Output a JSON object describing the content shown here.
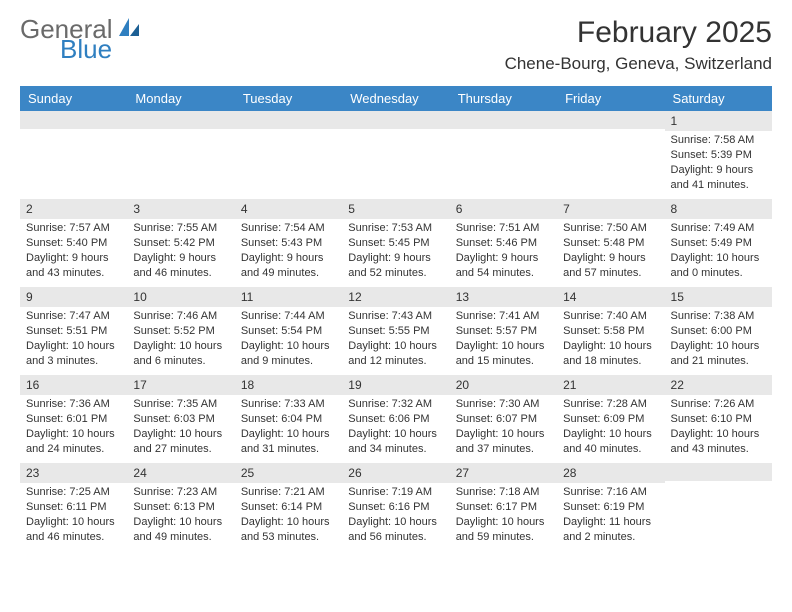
{
  "logo": {
    "line1": "General",
    "line2": "Blue"
  },
  "title": "February 2025",
  "location": "Chene-Bourg, Geneva, Switzerland",
  "colors": {
    "header_bg": "#3b86c6",
    "header_text": "#ffffff",
    "daynum_bg": "#e8e8e8",
    "text": "#333333",
    "logo_gray": "#6a6a6a",
    "logo_blue": "#2f7fc0",
    "page_bg": "#ffffff"
  },
  "dayNames": [
    "Sunday",
    "Monday",
    "Tuesday",
    "Wednesday",
    "Thursday",
    "Friday",
    "Saturday"
  ],
  "weeks": [
    [
      {
        "num": "",
        "sunrise": "",
        "sunset": "",
        "daylight": ""
      },
      {
        "num": "",
        "sunrise": "",
        "sunset": "",
        "daylight": ""
      },
      {
        "num": "",
        "sunrise": "",
        "sunset": "",
        "daylight": ""
      },
      {
        "num": "",
        "sunrise": "",
        "sunset": "",
        "daylight": ""
      },
      {
        "num": "",
        "sunrise": "",
        "sunset": "",
        "daylight": ""
      },
      {
        "num": "",
        "sunrise": "",
        "sunset": "",
        "daylight": ""
      },
      {
        "num": "1",
        "sunrise": "Sunrise: 7:58 AM",
        "sunset": "Sunset: 5:39 PM",
        "daylight": "Daylight: 9 hours and 41 minutes."
      }
    ],
    [
      {
        "num": "2",
        "sunrise": "Sunrise: 7:57 AM",
        "sunset": "Sunset: 5:40 PM",
        "daylight": "Daylight: 9 hours and 43 minutes."
      },
      {
        "num": "3",
        "sunrise": "Sunrise: 7:55 AM",
        "sunset": "Sunset: 5:42 PM",
        "daylight": "Daylight: 9 hours and 46 minutes."
      },
      {
        "num": "4",
        "sunrise": "Sunrise: 7:54 AM",
        "sunset": "Sunset: 5:43 PM",
        "daylight": "Daylight: 9 hours and 49 minutes."
      },
      {
        "num": "5",
        "sunrise": "Sunrise: 7:53 AM",
        "sunset": "Sunset: 5:45 PM",
        "daylight": "Daylight: 9 hours and 52 minutes."
      },
      {
        "num": "6",
        "sunrise": "Sunrise: 7:51 AM",
        "sunset": "Sunset: 5:46 PM",
        "daylight": "Daylight: 9 hours and 54 minutes."
      },
      {
        "num": "7",
        "sunrise": "Sunrise: 7:50 AM",
        "sunset": "Sunset: 5:48 PM",
        "daylight": "Daylight: 9 hours and 57 minutes."
      },
      {
        "num": "8",
        "sunrise": "Sunrise: 7:49 AM",
        "sunset": "Sunset: 5:49 PM",
        "daylight": "Daylight: 10 hours and 0 minutes."
      }
    ],
    [
      {
        "num": "9",
        "sunrise": "Sunrise: 7:47 AM",
        "sunset": "Sunset: 5:51 PM",
        "daylight": "Daylight: 10 hours and 3 minutes."
      },
      {
        "num": "10",
        "sunrise": "Sunrise: 7:46 AM",
        "sunset": "Sunset: 5:52 PM",
        "daylight": "Daylight: 10 hours and 6 minutes."
      },
      {
        "num": "11",
        "sunrise": "Sunrise: 7:44 AM",
        "sunset": "Sunset: 5:54 PM",
        "daylight": "Daylight: 10 hours and 9 minutes."
      },
      {
        "num": "12",
        "sunrise": "Sunrise: 7:43 AM",
        "sunset": "Sunset: 5:55 PM",
        "daylight": "Daylight: 10 hours and 12 minutes."
      },
      {
        "num": "13",
        "sunrise": "Sunrise: 7:41 AM",
        "sunset": "Sunset: 5:57 PM",
        "daylight": "Daylight: 10 hours and 15 minutes."
      },
      {
        "num": "14",
        "sunrise": "Sunrise: 7:40 AM",
        "sunset": "Sunset: 5:58 PM",
        "daylight": "Daylight: 10 hours and 18 minutes."
      },
      {
        "num": "15",
        "sunrise": "Sunrise: 7:38 AM",
        "sunset": "Sunset: 6:00 PM",
        "daylight": "Daylight: 10 hours and 21 minutes."
      }
    ],
    [
      {
        "num": "16",
        "sunrise": "Sunrise: 7:36 AM",
        "sunset": "Sunset: 6:01 PM",
        "daylight": "Daylight: 10 hours and 24 minutes."
      },
      {
        "num": "17",
        "sunrise": "Sunrise: 7:35 AM",
        "sunset": "Sunset: 6:03 PM",
        "daylight": "Daylight: 10 hours and 27 minutes."
      },
      {
        "num": "18",
        "sunrise": "Sunrise: 7:33 AM",
        "sunset": "Sunset: 6:04 PM",
        "daylight": "Daylight: 10 hours and 31 minutes."
      },
      {
        "num": "19",
        "sunrise": "Sunrise: 7:32 AM",
        "sunset": "Sunset: 6:06 PM",
        "daylight": "Daylight: 10 hours and 34 minutes."
      },
      {
        "num": "20",
        "sunrise": "Sunrise: 7:30 AM",
        "sunset": "Sunset: 6:07 PM",
        "daylight": "Daylight: 10 hours and 37 minutes."
      },
      {
        "num": "21",
        "sunrise": "Sunrise: 7:28 AM",
        "sunset": "Sunset: 6:09 PM",
        "daylight": "Daylight: 10 hours and 40 minutes."
      },
      {
        "num": "22",
        "sunrise": "Sunrise: 7:26 AM",
        "sunset": "Sunset: 6:10 PM",
        "daylight": "Daylight: 10 hours and 43 minutes."
      }
    ],
    [
      {
        "num": "23",
        "sunrise": "Sunrise: 7:25 AM",
        "sunset": "Sunset: 6:11 PM",
        "daylight": "Daylight: 10 hours and 46 minutes."
      },
      {
        "num": "24",
        "sunrise": "Sunrise: 7:23 AM",
        "sunset": "Sunset: 6:13 PM",
        "daylight": "Daylight: 10 hours and 49 minutes."
      },
      {
        "num": "25",
        "sunrise": "Sunrise: 7:21 AM",
        "sunset": "Sunset: 6:14 PM",
        "daylight": "Daylight: 10 hours and 53 minutes."
      },
      {
        "num": "26",
        "sunrise": "Sunrise: 7:19 AM",
        "sunset": "Sunset: 6:16 PM",
        "daylight": "Daylight: 10 hours and 56 minutes."
      },
      {
        "num": "27",
        "sunrise": "Sunrise: 7:18 AM",
        "sunset": "Sunset: 6:17 PM",
        "daylight": "Daylight: 10 hours and 59 minutes."
      },
      {
        "num": "28",
        "sunrise": "Sunrise: 7:16 AM",
        "sunset": "Sunset: 6:19 PM",
        "daylight": "Daylight: 11 hours and 2 minutes."
      },
      {
        "num": "",
        "sunrise": "",
        "sunset": "",
        "daylight": ""
      }
    ]
  ]
}
